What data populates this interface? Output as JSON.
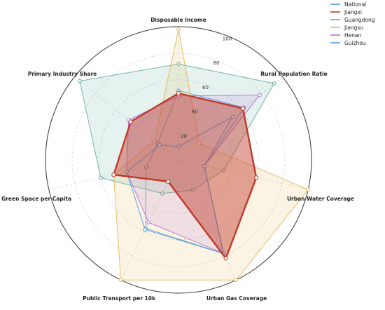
{
  "chart_data": {
    "type": "radar",
    "axes": [
      "Disposable Income",
      "Rural Population Ratio",
      "Urban Water Coverage",
      "Urban Gas Coverage",
      "Public Transport per 10k",
      "Green Space per Capita",
      "Primary Industry Share"
    ],
    "rlim": [
      0,
      100
    ],
    "rticks": [
      20,
      40,
      60,
      80,
      100
    ],
    "grid": true,
    "legend_position": "top-right",
    "series": [
      {
        "name": "National",
        "color": "#4a90d9",
        "values": [
          52,
          63,
          20,
          78,
          57,
          25,
          20
        ],
        "fill": false
      },
      {
        "name": "Jiangxi",
        "color": "#c0392b",
        "values": [
          50,
          62,
          60,
          82,
          18,
          50,
          46
        ],
        "fill": true,
        "highlight": true
      },
      {
        "name": "Guangdong",
        "color": "#5aa89a",
        "values": [
          72,
          92,
          35,
          25,
          28,
          60,
          95
        ],
        "fill": true
      },
      {
        "name": "Jiangsu",
        "color": "#e2b54a",
        "values": [
          98,
          20,
          100,
          100,
          100,
          50,
          23
        ],
        "fill": true
      },
      {
        "name": "Henan",
        "color": "#b06ad9",
        "values": [
          48,
          78,
          20,
          78,
          52,
          40,
          48
        ],
        "fill": true
      },
      {
        "name": "Guizhou",
        "color": "#3a9ad9",
        "values": [
          10,
          52,
          20,
          78,
          58,
          40,
          18
        ],
        "fill": false
      }
    ]
  }
}
